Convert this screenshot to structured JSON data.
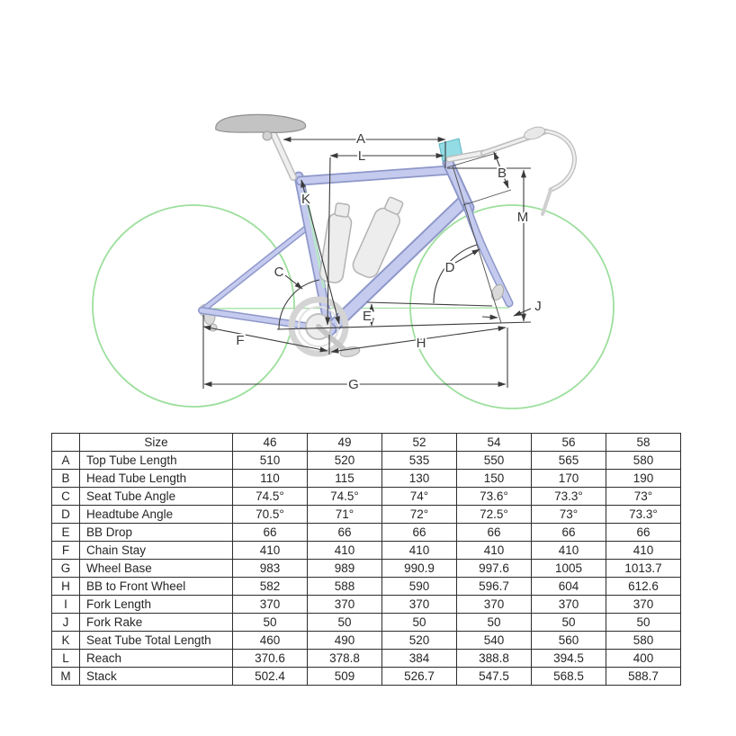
{
  "diagram": {
    "labels": {
      "A": "A",
      "L": "L",
      "K": "K",
      "B": "B",
      "M": "M",
      "C": "C",
      "D": "D",
      "E": "E",
      "J": "J",
      "F": "F",
      "H": "H",
      "G": "G"
    },
    "colors": {
      "wheel_green": "#9ddf9d",
      "frame_fill": "#c5cbee",
      "frame_outline": "#8d97c9",
      "component_gray": "#dcdcdc",
      "spacer_cyan": "#93dce5",
      "dimension_line": "#3b3b3b"
    }
  },
  "table": {
    "size_header_label": "Size",
    "sizes": [
      "46",
      "49",
      "52",
      "54",
      "56",
      "58"
    ],
    "rows": [
      {
        "key": "A",
        "label": "Top Tube Length",
        "values": [
          "510",
          "520",
          "535",
          "550",
          "565",
          "580"
        ]
      },
      {
        "key": "B",
        "label": "Head Tube Length",
        "values": [
          "110",
          "115",
          "130",
          "150",
          "170",
          "190"
        ]
      },
      {
        "key": "C",
        "label": "Seat Tube Angle",
        "values": [
          "74.5°",
          "74.5°",
          "74°",
          "73.6°",
          "73.3°",
          "73°"
        ]
      },
      {
        "key": "D",
        "label": "Headtube Angle",
        "values": [
          "70.5°",
          "71°",
          "72°",
          "72.5°",
          "73°",
          "73.3°"
        ]
      },
      {
        "key": "E",
        "label": "BB Drop",
        "values": [
          "66",
          "66",
          "66",
          "66",
          "66",
          "66"
        ]
      },
      {
        "key": "F",
        "label": "Chain Stay",
        "values": [
          "410",
          "410",
          "410",
          "410",
          "410",
          "410"
        ]
      },
      {
        "key": "G",
        "label": "Wheel Base",
        "values": [
          "983",
          "989",
          "990.9",
          "997.6",
          "1005",
          "1013.7"
        ]
      },
      {
        "key": "H",
        "label": "BB to Front Wheel",
        "values": [
          "582",
          "588",
          "590",
          "596.7",
          "604",
          "612.6"
        ]
      },
      {
        "key": "I",
        "label": "Fork Length",
        "values": [
          "370",
          "370",
          "370",
          "370",
          "370",
          "370"
        ]
      },
      {
        "key": "J",
        "label": "Fork Rake",
        "values": [
          "50",
          "50",
          "50",
          "50",
          "50",
          "50"
        ]
      },
      {
        "key": "K",
        "label": "Seat Tube Total Length",
        "values": [
          "460",
          "490",
          "520",
          "540",
          "560",
          "580"
        ]
      },
      {
        "key": "L",
        "label": "Reach",
        "values": [
          "370.6",
          "378.8",
          "384",
          "388.8",
          "394.5",
          "400"
        ]
      },
      {
        "key": "M",
        "label": "Stack",
        "values": [
          "502.4",
          "509",
          "526.7",
          "547.5",
          "568.5",
          "588.7"
        ]
      }
    ]
  }
}
